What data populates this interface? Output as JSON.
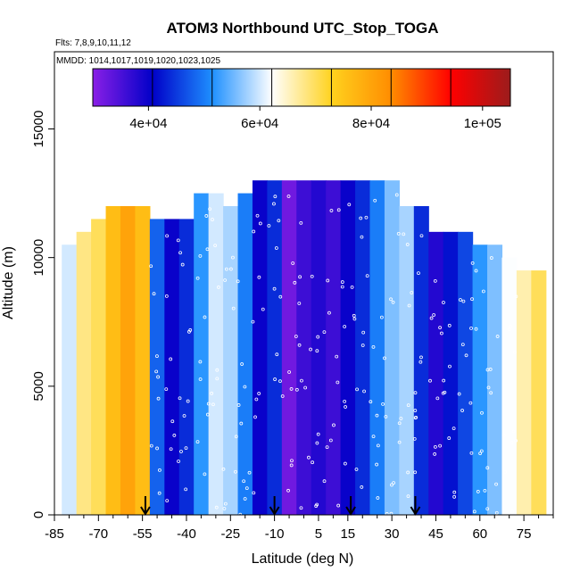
{
  "chart_data": {
    "type": "heatmap",
    "title": "ATOM3 Northbound UTC_Stop_TOGA",
    "subtitle_flights": "Flts: 7,8,9,10,11,12",
    "subtitle_dates": "MMDD: 1014,1017,1019,1020,1023,1025",
    "xlabel": "Latitude (deg N)",
    "ylabel": "Altitude (m)",
    "xlim": [
      -85,
      85
    ],
    "ylim": [
      0,
      18000
    ],
    "x_ticks": [
      -85,
      -70,
      -55,
      -40,
      -25,
      -10,
      5,
      15,
      30,
      45,
      60,
      75
    ],
    "y_ticks": [
      0,
      5000,
      10000,
      15000
    ],
    "y_tick_labels": [
      "0",
      "5000",
      "10000",
      "15000"
    ],
    "colorbar": {
      "range": [
        30000,
        105000
      ],
      "ticks": [
        40000,
        60000,
        80000,
        100000
      ],
      "tick_labels": [
        "4e+04",
        "6e+04",
        "8e+04",
        "1e+05"
      ],
      "colors": [
        "#8a1fe6",
        "#0000c8",
        "#1e90ff",
        "#ffffff",
        "#ffd21e",
        "#ff8c00",
        "#ff0000",
        "#9b1c1c"
      ]
    },
    "marker_latitudes": [
      -54,
      -10,
      16,
      38
    ],
    "columns": [
      {
        "lat": -80,
        "top": 10500,
        "value": 60000
      },
      {
        "lat": -75,
        "top": 11000,
        "value": 68000
      },
      {
        "lat": -70,
        "top": 11500,
        "value": 70000
      },
      {
        "lat": -65,
        "top": 12000,
        "value": 76000
      },
      {
        "lat": -60,
        "top": 12000,
        "value": 80000
      },
      {
        "lat": -55,
        "top": 12000,
        "value": 76000
      },
      {
        "lat": -50,
        "top": 11500,
        "value": 48000
      },
      {
        "lat": -45,
        "top": 11500,
        "value": 40000
      },
      {
        "lat": -40,
        "top": 11500,
        "value": 44000
      },
      {
        "lat": -35,
        "top": 12500,
        "value": 52000
      },
      {
        "lat": -30,
        "top": 12500,
        "value": 60000
      },
      {
        "lat": -25,
        "top": 12000,
        "value": 58000
      },
      {
        "lat": -20,
        "top": 12500,
        "value": 50000
      },
      {
        "lat": -15,
        "top": 13000,
        "value": 40000
      },
      {
        "lat": -10,
        "top": 13000,
        "value": 44000
      },
      {
        "lat": -5,
        "top": 13000,
        "value": 32000
      },
      {
        "lat": 0,
        "top": 13000,
        "value": 36000
      },
      {
        "lat": 5,
        "top": 13000,
        "value": 38000
      },
      {
        "lat": 10,
        "top": 13000,
        "value": 36000
      },
      {
        "lat": 15,
        "top": 13000,
        "value": 40000
      },
      {
        "lat": 20,
        "top": 13000,
        "value": 44000
      },
      {
        "lat": 25,
        "top": 13000,
        "value": 50000
      },
      {
        "lat": 30,
        "top": 13000,
        "value": 56000
      },
      {
        "lat": 35,
        "top": 12000,
        "value": 58000
      },
      {
        "lat": 40,
        "top": 12000,
        "value": 44000
      },
      {
        "lat": 45,
        "top": 11000,
        "value": 38000
      },
      {
        "lat": 50,
        "top": 11000,
        "value": 42000
      },
      {
        "lat": 55,
        "top": 11000,
        "value": 46000
      },
      {
        "lat": 60,
        "top": 10500,
        "value": 52000
      },
      {
        "lat": 65,
        "top": 10500,
        "value": 56000
      },
      {
        "lat": 70,
        "top": 10000,
        "value": 62000
      },
      {
        "lat": 75,
        "top": 9500,
        "value": 66000
      },
      {
        "lat": 80,
        "top": 9500,
        "value": 70000
      }
    ]
  }
}
